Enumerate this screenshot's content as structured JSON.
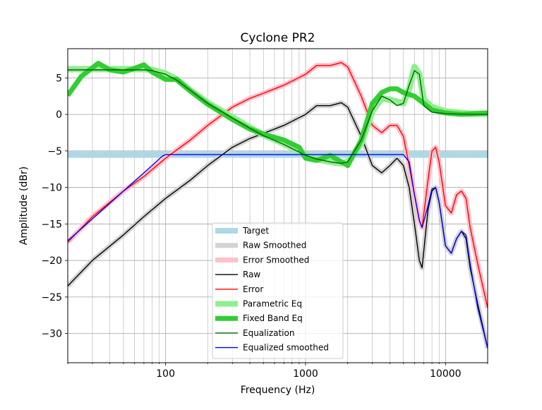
{
  "chart_data": {
    "type": "line",
    "title": "Cyclone PR2",
    "xlabel": "Frequency (Hz)",
    "ylabel": "Amplitude (dBr)",
    "xscale": "log",
    "xlim": [
      20,
      20000
    ],
    "ylim": [
      -34,
      9
    ],
    "xticks": [
      {
        "value": 100,
        "label": "100"
      },
      {
        "value": 1000,
        "label": "1000"
      },
      {
        "value": 10000,
        "label": "10000"
      }
    ],
    "yticks": [
      {
        "value": 5,
        "label": "5"
      },
      {
        "value": 0,
        "label": "0"
      },
      {
        "value": -5,
        "label": "−5"
      },
      {
        "value": -10,
        "label": "−10"
      },
      {
        "value": -15,
        "label": "−15"
      },
      {
        "value": -20,
        "label": "−20"
      },
      {
        "value": -25,
        "label": "−25"
      },
      {
        "value": -30,
        "label": "−30"
      }
    ],
    "grid": true,
    "legend_position": "lower-center",
    "series": [
      {
        "name": "Target",
        "color": "#add8e6",
        "width": 9,
        "x": [
          20,
          20000
        ],
        "y": [
          -5.5,
          -5.5
        ]
      },
      {
        "name": "Raw Smoothed",
        "color": "#d3d3d3",
        "width": 7,
        "x": [
          20,
          30,
          50,
          70,
          100,
          150,
          200,
          300,
          400,
          500,
          700,
          1000,
          1200,
          1500,
          1800,
          2000,
          2500,
          3000,
          3500,
          4000,
          4500,
          5000,
          5500,
          6000,
          6500,
          6800,
          7500,
          8000,
          8500,
          9000,
          10000,
          11000,
          12000,
          13000,
          14000,
          15000,
          17000,
          20000
        ],
        "y": [
          -23.5,
          -20,
          -16.5,
          -14,
          -11.5,
          -9,
          -7,
          -4.5,
          -3.3,
          -2.6,
          -1.5,
          0,
          1.2,
          1.2,
          1.6,
          1,
          -3,
          -7,
          -8,
          -7,
          -6,
          -7,
          -10,
          -15,
          -20,
          -21,
          -13,
          -10.5,
          -10,
          -12,
          -18,
          -19,
          -17,
          -16,
          -17,
          -21,
          -26,
          -32
        ]
      },
      {
        "name": "Error Smoothed",
        "color": "#ffc0cb",
        "width": 7,
        "x": [
          20,
          30,
          50,
          70,
          100,
          150,
          200,
          300,
          400,
          500,
          700,
          1000,
          1200,
          1500,
          1800,
          2000,
          2500,
          3000,
          3500,
          4000,
          4500,
          5000,
          5500,
          6000,
          6500,
          6800,
          7500,
          8000,
          8500,
          9000,
          10000,
          11000,
          12000,
          13000,
          14000,
          15000,
          17000,
          20000
        ],
        "y": [
          -17.5,
          -14,
          -10.5,
          -8.5,
          -6,
          -3.5,
          -1.5,
          1,
          2.2,
          2.9,
          4,
          5.5,
          6.7,
          6.7,
          7.1,
          6.5,
          2.5,
          -1.5,
          -2.5,
          -1.5,
          -1.5,
          -3,
          -7,
          -11,
          -14.5,
          -15.5,
          -9,
          -5,
          -4.5,
          -6.5,
          -12.5,
          -13.5,
          -11,
          -10.5,
          -11.5,
          -15.5,
          -20.5,
          -26.5
        ]
      },
      {
        "name": "Raw",
        "color": "#000000",
        "width": 1.4,
        "x": [
          20,
          30,
          50,
          70,
          100,
          150,
          200,
          300,
          400,
          500,
          700,
          1000,
          1200,
          1500,
          1800,
          2000,
          2500,
          3000,
          3500,
          4000,
          4500,
          5000,
          5500,
          6000,
          6500,
          6800,
          7500,
          8000,
          8500,
          9000,
          10000,
          11000,
          12000,
          13000,
          14000,
          15000,
          17000,
          20000
        ],
        "y": [
          -23.5,
          -20,
          -16.5,
          -14,
          -11.5,
          -9,
          -7,
          -4.5,
          -3.3,
          -2.6,
          -1.5,
          0,
          1.2,
          1.2,
          1.6,
          1,
          -3,
          -7,
          -8,
          -7,
          -6,
          -7,
          -10,
          -15,
          -20,
          -21,
          -13,
          -10.5,
          -10,
          -12,
          -18,
          -19,
          -17,
          -16,
          -17,
          -21,
          -26,
          -32
        ]
      },
      {
        "name": "Error",
        "color": "#ff0000",
        "width": 1.4,
        "x": [
          20,
          30,
          50,
          70,
          100,
          150,
          200,
          300,
          400,
          500,
          700,
          1000,
          1200,
          1500,
          1800,
          2000,
          2500,
          3000,
          3500,
          4000,
          4500,
          5000,
          5500,
          6000,
          6500,
          6800,
          7500,
          8000,
          8500,
          9000,
          10000,
          11000,
          12000,
          13000,
          14000,
          15000,
          17000,
          20000
        ],
        "y": [
          -17.5,
          -14,
          -10.5,
          -8.5,
          -6,
          -3.5,
          -1.5,
          1,
          2.2,
          2.9,
          4,
          5.5,
          6.7,
          6.7,
          7.1,
          6.5,
          2.5,
          -1.5,
          -2.5,
          -1.5,
          -1.5,
          -3,
          -7,
          -11,
          -14.5,
          -15.5,
          -9,
          -5,
          -4.5,
          -6.5,
          -12.5,
          -13.5,
          -11,
          -10.5,
          -11.5,
          -15.5,
          -20.5,
          -26.5
        ]
      },
      {
        "name": "Parametric Eq",
        "color": "#90ee90",
        "width": 9,
        "x": [
          20,
          30,
          50,
          70,
          80,
          100,
          120,
          150,
          200,
          300,
          400,
          500,
          700,
          1000,
          1200,
          1500,
          1800,
          2000,
          2500,
          3000,
          3500,
          4000,
          5000,
          5500,
          6000,
          6500,
          7000,
          8000,
          10000,
          15000,
          20000
        ],
        "y": [
          6.2,
          6.2,
          6.2,
          6.2,
          6.1,
          5.6,
          4.8,
          3.3,
          1.6,
          -0.4,
          -1.8,
          -2.8,
          -4,
          -5.5,
          -6.1,
          -6.5,
          -6.7,
          -6.5,
          -4,
          0.5,
          2.2,
          2,
          1.5,
          3.5,
          6.5,
          5.5,
          2,
          1,
          0.4,
          0.1,
          0.1
        ]
      },
      {
        "name": "Fixed Band Eq",
        "color": "#32cd32",
        "width": 7,
        "x": [
          20,
          25,
          33,
          40,
          50,
          60,
          70,
          80,
          100,
          120,
          150,
          200,
          300,
          400,
          500,
          700,
          900,
          1000,
          1200,
          1500,
          2000,
          2500,
          3000,
          3500,
          4000,
          4500,
          5000,
          6000,
          7000,
          8000,
          10000,
          13000,
          20000
        ],
        "y": [
          2.6,
          5.2,
          7,
          6.1,
          5.8,
          6.3,
          6.8,
          5.8,
          4.8,
          4.8,
          3.2,
          1.4,
          -0.7,
          -2,
          -2.7,
          -3.5,
          -4.5,
          -6,
          -6.3,
          -5.6,
          -7,
          -3.5,
          1.5,
          3,
          3.5,
          3.5,
          3,
          2.5,
          1.5,
          0.6,
          0.2,
          0,
          0.2
        ]
      },
      {
        "name": "Equalization",
        "color": "#006400",
        "width": 1.4,
        "x": [
          20,
          30,
          50,
          70,
          80,
          100,
          120,
          150,
          200,
          300,
          400,
          500,
          700,
          1000,
          1200,
          1500,
          1800,
          2000,
          2500,
          3000,
          3500,
          4000,
          4500,
          5000,
          5500,
          6000,
          6500,
          7000,
          8000,
          10000,
          15000,
          20000
        ],
        "y": [
          6.1,
          6.1,
          6.1,
          6.1,
          6,
          5.5,
          4.7,
          3.3,
          1.5,
          -0.5,
          -1.9,
          -2.9,
          -4.1,
          -5.6,
          -6.1,
          -6.5,
          -6.7,
          -6.5,
          -3.5,
          0.5,
          2.5,
          2,
          1.2,
          1.5,
          4,
          6,
          5.5,
          1.2,
          0.3,
          0.1,
          0,
          0
        ]
      },
      {
        "name": "Equalized smoothed",
        "color": "#0000ff",
        "width": 1.4,
        "x": [
          20,
          50,
          80,
          95,
          100,
          200,
          500,
          1000,
          2000,
          3000,
          4000,
          5000,
          5500,
          6000,
          6500,
          6800,
          7500,
          8000,
          8500,
          9000,
          10000,
          11000,
          12000,
          13000,
          14000,
          15000,
          17000,
          20000
        ],
        "y": [
          -17.3,
          -10.5,
          -7,
          -5.7,
          -5.5,
          -5.5,
          -5.5,
          -5.5,
          -5.5,
          -5.5,
          -5.5,
          -5.5,
          -6.5,
          -11,
          -14.5,
          -15.5,
          -12.5,
          -10.2,
          -10,
          -12,
          -18,
          -19,
          -17,
          -16,
          -16.5,
          -20.5,
          -26.5,
          -32
        ]
      }
    ]
  }
}
